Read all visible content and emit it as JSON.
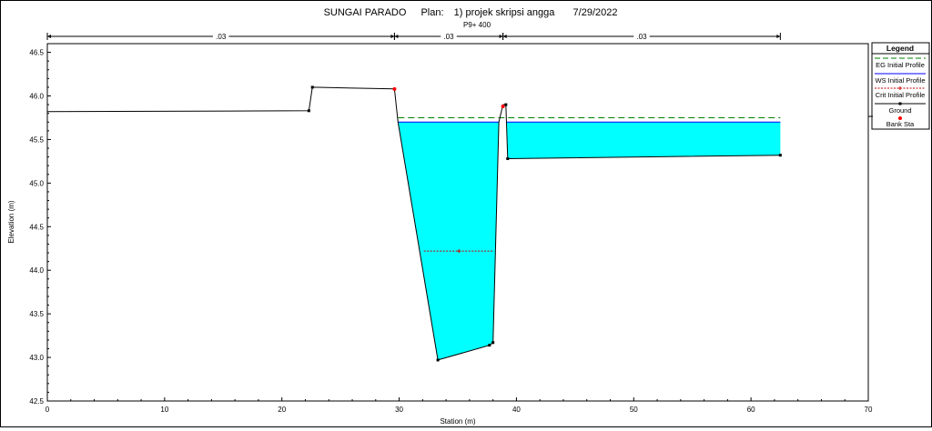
{
  "chart_data": {
    "type": "area",
    "title": "SUNGAI PARADO",
    "plan_label": "Plan:",
    "plan_value": "1) projek skripsi angga",
    "date": "7/29/2022",
    "subtitle": "P9+ 400",
    "xlabel": "Station (m)",
    "ylabel": "Elevation (m)",
    "xlim": [
      0,
      70
    ],
    "ylim": [
      42.5,
      46.6
    ],
    "x_ticks": [
      "0",
      "10",
      "20",
      "30",
      "40",
      "50",
      "60",
      "70"
    ],
    "x_tick_values": [
      0,
      10,
      20,
      30,
      40,
      50,
      60,
      70
    ],
    "y_ticks": [
      "42.5",
      "43.0",
      "43.5",
      "44.0",
      "44.5",
      "45.0",
      "45.5",
      "46.0",
      "46.5"
    ],
    "y_tick_values": [
      42.5,
      43.0,
      43.5,
      44.0,
      44.5,
      45.0,
      45.5,
      46.0,
      46.5
    ],
    "ground": {
      "x": [
        0,
        22.3,
        22.6,
        29.6,
        29.9,
        33.3,
        37.7,
        38.0,
        38.5,
        38.85,
        39.1,
        39.25,
        62.5
      ],
      "y": [
        45.82,
        45.83,
        46.1,
        46.08,
        45.7,
        42.97,
        43.14,
        43.17,
        45.7,
        45.9,
        45.9,
        45.28,
        45.32
      ]
    },
    "ground_markers": [
      {
        "x": 22.3,
        "y": 45.83
      },
      {
        "x": 22.6,
        "y": 46.1
      },
      {
        "x": 33.3,
        "y": 42.97
      },
      {
        "x": 37.7,
        "y": 43.14
      },
      {
        "x": 38.0,
        "y": 43.17
      },
      {
        "x": 39.1,
        "y": 45.9
      },
      {
        "x": 39.25,
        "y": 45.28
      },
      {
        "x": 62.5,
        "y": 45.32
      }
    ],
    "bank_stations": [
      {
        "x": 29.6,
        "y": 46.08
      },
      {
        "x": 38.85,
        "y": 45.88
      }
    ],
    "ws_elevation": 45.7,
    "eg_elevation": 45.75,
    "crit_elevation": 44.22,
    "crit_range": [
      32.1,
      38.1
    ],
    "water_color": "#00ffff",
    "eg_color": "#008000",
    "crit_color": "#cc0000",
    "bank_color": "#ff0000",
    "mannings": {
      "segments": [
        {
          "from": 0,
          "to": 29.6,
          "label": ".03"
        },
        {
          "from": 29.6,
          "to": 38.85,
          "label": ".03"
        },
        {
          "from": 38.85,
          "to": 62.5,
          "label": ".03"
        }
      ]
    },
    "legend": {
      "title": "Legend",
      "position": "right",
      "items": [
        {
          "label": "EG Initial Profile"
        },
        {
          "label": "WS Initial Profile"
        },
        {
          "label": "Crit Initial Profile"
        },
        {
          "label": "Ground"
        },
        {
          "label": "Bank Sta"
        }
      ]
    }
  }
}
